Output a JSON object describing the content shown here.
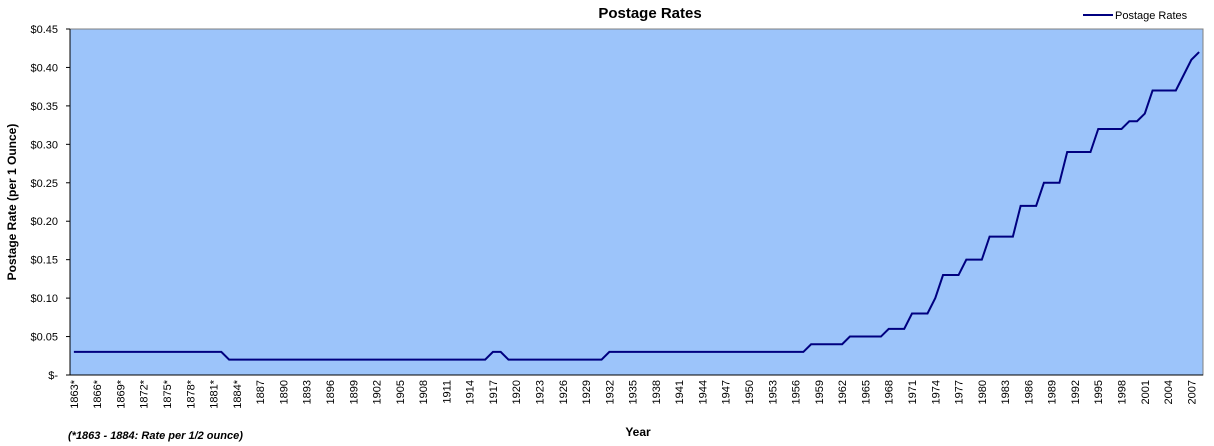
{
  "chart_data": {
    "type": "line",
    "title": "Postage Rates",
    "x_label": "Year",
    "y_label": "Postage Rate (per 1 Ounce)",
    "footnote": "(*1863 - 1884:  Rate per 1/2 ounce)",
    "legend": "top-right",
    "plot_color": "#9cc4fa",
    "categories": [
      "1863*",
      null,
      null,
      "1866*",
      null,
      null,
      "1869*",
      null,
      null,
      "1872*",
      null,
      null,
      "1875*",
      null,
      null,
      "1878*",
      null,
      null,
      "1881*",
      null,
      null,
      "1884*",
      null,
      null,
      "1887",
      null,
      null,
      "1890",
      null,
      null,
      "1893",
      null,
      null,
      "1896",
      null,
      null,
      "1899",
      null,
      null,
      "1902",
      null,
      null,
      "1905",
      null,
      null,
      "1908",
      null,
      null,
      "1911",
      null,
      null,
      "1914",
      null,
      null,
      "1917",
      null,
      null,
      "1920",
      null,
      null,
      "1923",
      null,
      null,
      "1926",
      null,
      null,
      "1929",
      null,
      null,
      "1932",
      null,
      null,
      "1935",
      null,
      null,
      "1938",
      null,
      null,
      "1941",
      null,
      null,
      "1944",
      null,
      null,
      "1947",
      null,
      null,
      "1950",
      null,
      null,
      "1953",
      null,
      null,
      "1956",
      null,
      null,
      "1959",
      null,
      null,
      "1962",
      null,
      null,
      "1965",
      null,
      null,
      "1968",
      null,
      null,
      "1971",
      null,
      null,
      "1974",
      null,
      null,
      "1977",
      null,
      null,
      "1980",
      null,
      null,
      "1983",
      null,
      null,
      "1986",
      null,
      null,
      "1989",
      null,
      null,
      "1992",
      null,
      null,
      "1995",
      null,
      null,
      "1998",
      null,
      null,
      "2001",
      null,
      null,
      "2004",
      null,
      null,
      "2007",
      null
    ],
    "series": [
      {
        "name": "Postage Rates",
        "color": "#000080",
        "values": [
          0.03,
          0.03,
          0.03,
          0.03,
          0.03,
          0.03,
          0.03,
          0.03,
          0.03,
          0.03,
          0.03,
          0.03,
          0.03,
          0.03,
          0.03,
          0.03,
          0.03,
          0.03,
          0.03,
          0.03,
          0.02,
          0.02,
          0.02,
          0.02,
          0.02,
          0.02,
          0.02,
          0.02,
          0.02,
          0.02,
          0.02,
          0.02,
          0.02,
          0.02,
          0.02,
          0.02,
          0.02,
          0.02,
          0.02,
          0.02,
          0.02,
          0.02,
          0.02,
          0.02,
          0.02,
          0.02,
          0.02,
          0.02,
          0.02,
          0.02,
          0.02,
          0.02,
          0.02,
          0.02,
          0.03,
          0.03,
          0.02,
          0.02,
          0.02,
          0.02,
          0.02,
          0.02,
          0.02,
          0.02,
          0.02,
          0.02,
          0.02,
          0.02,
          0.02,
          0.03,
          0.03,
          0.03,
          0.03,
          0.03,
          0.03,
          0.03,
          0.03,
          0.03,
          0.03,
          0.03,
          0.03,
          0.03,
          0.03,
          0.03,
          0.03,
          0.03,
          0.03,
          0.03,
          0.03,
          0.03,
          0.03,
          0.03,
          0.03,
          0.03,
          0.03,
          0.04,
          0.04,
          0.04,
          0.04,
          0.04,
          0.05,
          0.05,
          0.05,
          0.05,
          0.05,
          0.06,
          0.06,
          0.06,
          0.08,
          0.08,
          0.08,
          0.1,
          0.13,
          0.13,
          0.13,
          0.15,
          0.15,
          0.15,
          0.18,
          0.18,
          0.18,
          0.18,
          0.22,
          0.22,
          0.22,
          0.25,
          0.25,
          0.25,
          0.29,
          0.29,
          0.29,
          0.29,
          0.32,
          0.32,
          0.32,
          0.32,
          0.33,
          0.33,
          0.34,
          0.37,
          0.37,
          0.37,
          0.37,
          0.39,
          0.41,
          0.42
        ]
      }
    ],
    "ylim": [
      0,
      0.45
    ],
    "yticks": [
      {
        "value": 0,
        "label": "$-"
      },
      {
        "value": 0.05,
        "label": "$0.05"
      },
      {
        "value": 0.1,
        "label": "$0.10"
      },
      {
        "value": 0.15,
        "label": "$0.15"
      },
      {
        "value": 0.2,
        "label": "$0.20"
      },
      {
        "value": 0.25,
        "label": "$0.25"
      },
      {
        "value": 0.3,
        "label": "$0.30"
      },
      {
        "value": 0.35,
        "label": "$0.35"
      },
      {
        "value": 0.4,
        "label": "$0.40"
      },
      {
        "value": 0.45,
        "label": "$0.45"
      }
    ]
  }
}
